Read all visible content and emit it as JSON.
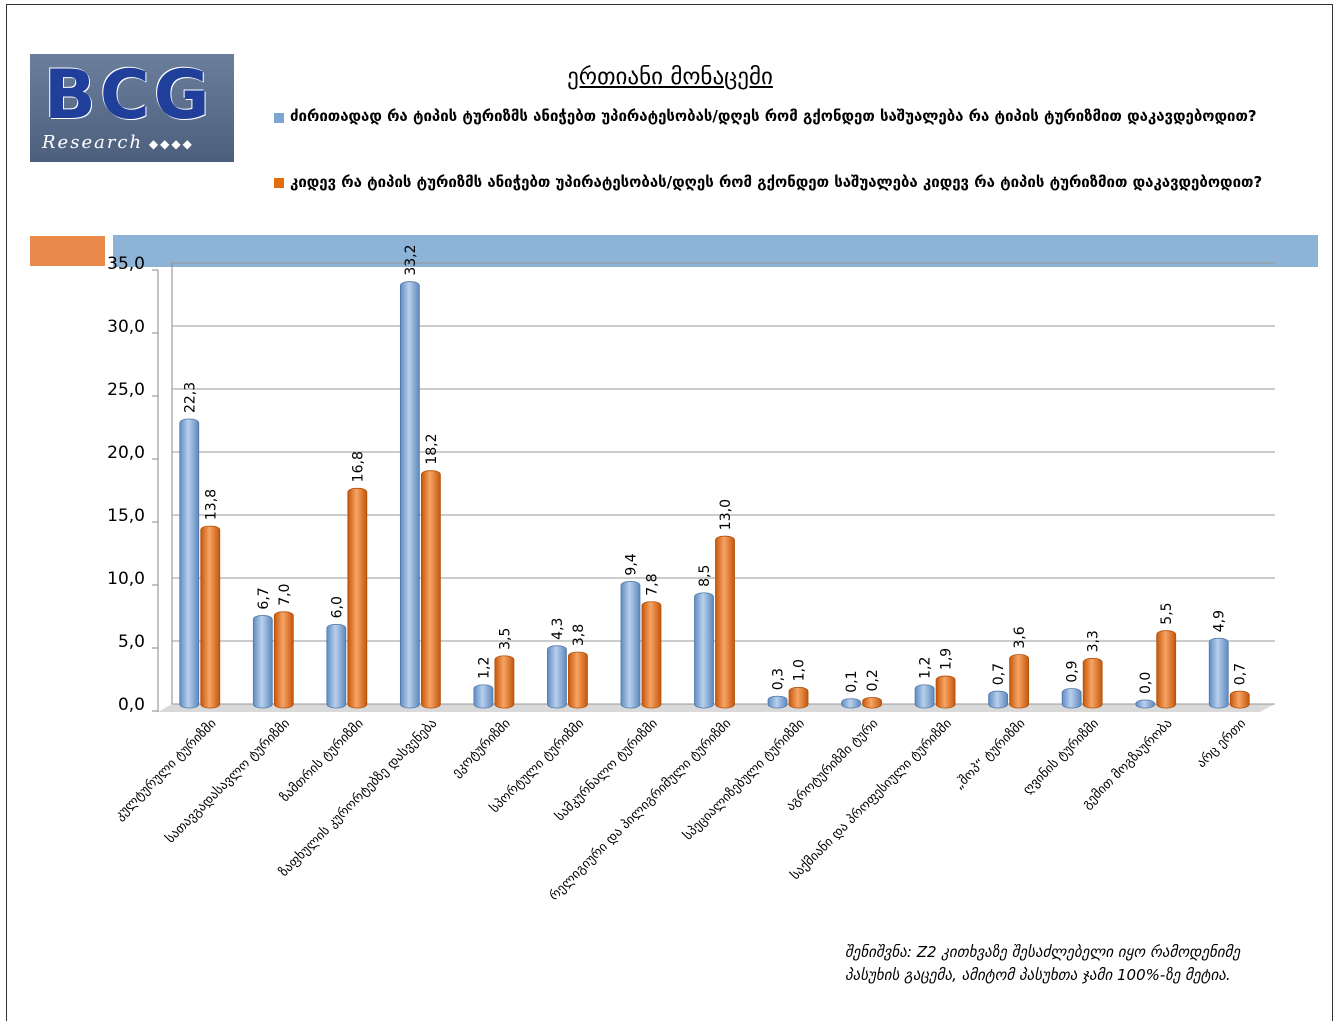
{
  "logo": {
    "title": "BCG",
    "subtitle": "Research"
  },
  "note": "შენიშვნა: Z2 კითხვაზე შესაძლებელი იყო რამოდენიმე პასუხის გაცემა, ამიტომ პასუხთა ჯამი 100%-ზე მეტია.",
  "chart_data": {
    "type": "bar",
    "title": "ერთიანი მონაცემი",
    "categories": [
      "კულტურული ტურიზმი",
      "სათავგადასავლო ტურიზმი",
      "ზამთრის ტურიზმი",
      "ზაფხულის კურორტებზე დასვენება",
      "ეკოტურიზმი",
      "სპორტული ტურიზმი",
      "სამკურნალო ტურიზმი",
      "რელიგიური და პილიგრიმული ტურიზმი",
      "სპეციალიზებული ტურიზმი",
      "აგროტურიზმი ტური",
      "საქმიანი და პროფესიული ტურიზმი",
      "„შოპ“ ტურიზმი",
      "ღვინის ტურიზმი",
      "გემით მოგზაურობა",
      "არც ერთი"
    ],
    "series": [
      {
        "name": "ძირითადად რა ტიპის ტურიზმს ანიჭებთ უპირატესობას/დღეს რომ გქონდეთ საშუალება რა ტიპის ტურიზმით დაკავდებოდით?",
        "color": "#7ea6d4",
        "values": [
          22.3,
          6.7,
          6.0,
          33.2,
          1.2,
          4.3,
          9.4,
          8.5,
          0.3,
          0.1,
          1.2,
          0.7,
          0.9,
          0.0,
          4.9
        ],
        "value_labels": [
          "22,3",
          "6,7",
          "6,0",
          "33,2",
          "1,2",
          "4,3",
          "9,4",
          "8,5",
          "0,3",
          "0,1",
          "1,2",
          "0,7",
          "0,9",
          "0,0",
          "4,9"
        ]
      },
      {
        "name": "კიდევ რა ტიპის ტურიზმს ანიჭებთ უპირატესობას/დღეს რომ გქონდეთ საშუალება კიდევ რა ტიპის ტურიზმით დაკავდებოდით?",
        "color": "#e46c0a",
        "values": [
          13.8,
          7.0,
          16.8,
          18.2,
          3.5,
          3.8,
          7.8,
          13.0,
          1.0,
          0.2,
          1.9,
          3.6,
          3.3,
          5.5,
          0.7
        ],
        "value_labels": [
          "13,8",
          "7,0",
          "16,8",
          "18,2",
          "3,5",
          "3,8",
          "7,8",
          "13,0",
          "1,0",
          "0,2",
          "1,9",
          "3,6",
          "3,3",
          "5,5",
          "0,7"
        ]
      }
    ],
    "ylim": [
      0,
      35
    ],
    "yticks": [
      {
        "value": 0,
        "label": "0,0"
      },
      {
        "value": 5,
        "label": "5,0"
      },
      {
        "value": 10,
        "label": "10,0"
      },
      {
        "value": 15,
        "label": "15,0"
      },
      {
        "value": 20,
        "label": "20,0"
      },
      {
        "value": 25,
        "label": "25,0"
      },
      {
        "value": 30,
        "label": "30,0"
      },
      {
        "value": 35,
        "label": "35,0"
      }
    ],
    "grid": true
  }
}
